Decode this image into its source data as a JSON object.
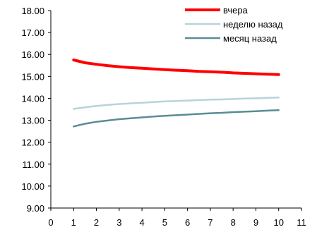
{
  "chart_data": {
    "type": "line",
    "title": "",
    "xlabel": "",
    "ylabel": "",
    "xlim": [
      0,
      11
    ],
    "ylim": [
      9,
      18
    ],
    "xticks": [
      "0",
      "1",
      "2",
      "3",
      "4",
      "5",
      "6",
      "7",
      "8",
      "9",
      "10",
      "11"
    ],
    "yticks": [
      "9.00",
      "10.00",
      "11.00",
      "12.00",
      "13.00",
      "14.00",
      "15.00",
      "16.00",
      "17.00",
      "18.00"
    ],
    "grid": false,
    "legend_position": "top-right",
    "x": [
      1,
      1.5,
      2,
      2.5,
      3,
      3.5,
      4,
      4.5,
      5,
      5.5,
      6,
      6.5,
      7,
      7.5,
      8,
      8.5,
      9,
      9.5,
      10
    ],
    "series": [
      {
        "name": "вчера",
        "color": "#ff0000",
        "values": [
          15.75,
          15.62,
          15.55,
          15.49,
          15.44,
          15.4,
          15.37,
          15.34,
          15.31,
          15.28,
          15.26,
          15.23,
          15.21,
          15.19,
          15.16,
          15.14,
          15.12,
          15.1,
          15.08
        ]
      },
      {
        "name": "неделю назад",
        "color": "#b8d3da",
        "values": [
          13.52,
          13.59,
          13.65,
          13.7,
          13.74,
          13.77,
          13.8,
          13.83,
          13.86,
          13.88,
          13.9,
          13.92,
          13.94,
          13.95,
          13.97,
          13.99,
          14.0,
          14.02,
          14.04
        ]
      },
      {
        "name": "месяц назад",
        "color": "#5b8c93",
        "values": [
          12.72,
          12.84,
          12.93,
          12.99,
          13.05,
          13.09,
          13.13,
          13.17,
          13.2,
          13.23,
          13.26,
          13.29,
          13.32,
          13.34,
          13.37,
          13.39,
          13.41,
          13.44,
          13.46
        ]
      }
    ]
  }
}
